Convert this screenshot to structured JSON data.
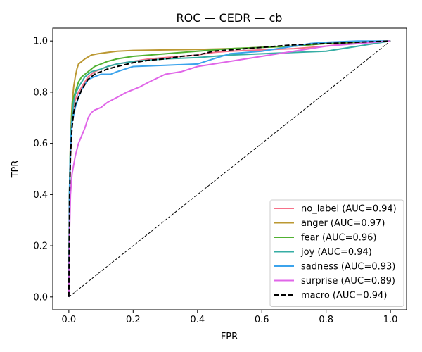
{
  "chart_data": {
    "type": "line",
    "title": "ROC — CEDR — cb",
    "xlabel": "FPR",
    "ylabel": "TPR",
    "xlim": [
      -0.05,
      1.05
    ],
    "ylim": [
      -0.05,
      1.05
    ],
    "xticks": [
      0.0,
      0.2,
      0.4,
      0.6,
      0.8,
      1.0
    ],
    "xtick_labels": [
      "0.0",
      "0.2",
      "0.4",
      "0.6",
      "0.8",
      "1.0"
    ],
    "yticks": [
      0.0,
      0.2,
      0.4,
      0.6,
      0.8,
      1.0
    ],
    "ytick_labels": [
      "0.0",
      "0.2",
      "0.4",
      "0.6",
      "0.8",
      "1.0"
    ],
    "grid": false,
    "legend_position": "bottom-right",
    "diagonal": {
      "x": [
        0,
        1
      ],
      "y": [
        0,
        1
      ],
      "color": "#000000",
      "style": "dashed"
    },
    "series": [
      {
        "name": "no_label (AUC=0.94)",
        "color": "#f77189",
        "x": [
          0,
          0.002,
          0.005,
          0.01,
          0.015,
          0.02,
          0.03,
          0.04,
          0.05,
          0.06,
          0.08,
          0.1,
          0.12,
          0.15,
          0.2,
          0.25,
          0.3,
          0.35,
          0.4,
          0.45,
          0.5,
          0.6,
          0.7,
          0.8,
          0.9,
          1.0
        ],
        "y": [
          0,
          0.35,
          0.55,
          0.68,
          0.74,
          0.77,
          0.8,
          0.82,
          0.84,
          0.86,
          0.88,
          0.89,
          0.9,
          0.91,
          0.92,
          0.93,
          0.935,
          0.94,
          0.945,
          0.955,
          0.96,
          0.965,
          0.97,
          0.98,
          0.995,
          1.0
        ]
      },
      {
        "name": "anger (AUC=0.97)",
        "color": "#bb9832",
        "x": [
          0,
          0.002,
          0.005,
          0.01,
          0.015,
          0.02,
          0.025,
          0.03,
          0.04,
          0.05,
          0.07,
          0.09,
          0.12,
          0.15,
          0.2,
          0.3,
          0.4,
          0.5,
          0.6,
          0.7,
          0.8,
          0.9,
          1.0
        ],
        "y": [
          0,
          0.4,
          0.62,
          0.75,
          0.82,
          0.86,
          0.89,
          0.91,
          0.92,
          0.93,
          0.945,
          0.95,
          0.955,
          0.96,
          0.963,
          0.965,
          0.967,
          0.97,
          0.975,
          0.98,
          0.99,
          0.995,
          1.0
        ]
      },
      {
        "name": "fear (AUC=0.96)",
        "color": "#50b131",
        "x": [
          0,
          0.002,
          0.005,
          0.01,
          0.015,
          0.02,
          0.03,
          0.04,
          0.05,
          0.06,
          0.08,
          0.1,
          0.12,
          0.15,
          0.2,
          0.25,
          0.3,
          0.4,
          0.5,
          0.6,
          0.7,
          0.8,
          0.9,
          1.0
        ],
        "y": [
          0,
          0.4,
          0.6,
          0.72,
          0.78,
          0.8,
          0.84,
          0.86,
          0.87,
          0.88,
          0.9,
          0.91,
          0.92,
          0.93,
          0.94,
          0.945,
          0.95,
          0.96,
          0.97,
          0.975,
          0.98,
          0.99,
          0.995,
          1.0
        ]
      },
      {
        "name": "joy (AUC=0.94)",
        "color": "#36ada4",
        "x": [
          0,
          0.002,
          0.005,
          0.01,
          0.015,
          0.02,
          0.03,
          0.04,
          0.05,
          0.07,
          0.1,
          0.12,
          0.15,
          0.2,
          0.3,
          0.4,
          0.45,
          0.5,
          0.6,
          0.7,
          0.8,
          0.9,
          1.0
        ],
        "y": [
          0,
          0.42,
          0.6,
          0.7,
          0.76,
          0.79,
          0.82,
          0.84,
          0.86,
          0.88,
          0.89,
          0.9,
          0.91,
          0.92,
          0.93,
          0.935,
          0.94,
          0.945,
          0.95,
          0.955,
          0.96,
          0.98,
          1.0
        ]
      },
      {
        "name": "sadness (AUC=0.93)",
        "color": "#3ba3ec",
        "x": [
          0,
          0.002,
          0.005,
          0.01,
          0.02,
          0.03,
          0.04,
          0.05,
          0.06,
          0.08,
          0.1,
          0.13,
          0.15,
          0.2,
          0.3,
          0.4,
          0.45,
          0.5,
          0.6,
          0.7,
          0.75,
          0.8,
          0.9,
          1.0
        ],
        "y": [
          0,
          0.4,
          0.58,
          0.68,
          0.74,
          0.78,
          0.81,
          0.83,
          0.85,
          0.86,
          0.87,
          0.87,
          0.88,
          0.9,
          0.905,
          0.91,
          0.93,
          0.95,
          0.96,
          0.98,
          0.99,
          0.995,
          1.0,
          1.0
        ]
      },
      {
        "name": "surprise (AUC=0.89)",
        "color": "#e066e8",
        "x": [
          0,
          0.002,
          0.005,
          0.01,
          0.02,
          0.03,
          0.04,
          0.05,
          0.06,
          0.07,
          0.08,
          0.1,
          0.12,
          0.15,
          0.18,
          0.2,
          0.22,
          0.25,
          0.3,
          0.35,
          0.4,
          0.45,
          0.5,
          0.6,
          0.7,
          0.8,
          0.9,
          1.0
        ],
        "y": [
          0,
          0.25,
          0.4,
          0.48,
          0.55,
          0.6,
          0.63,
          0.66,
          0.7,
          0.72,
          0.73,
          0.74,
          0.76,
          0.78,
          0.8,
          0.81,
          0.82,
          0.84,
          0.87,
          0.88,
          0.9,
          0.91,
          0.92,
          0.94,
          0.96,
          0.98,
          0.99,
          1.0
        ]
      },
      {
        "name": "macro (AUC=0.94)",
        "color": "#000000",
        "dashed": true,
        "x": [
          0,
          0.002,
          0.005,
          0.01,
          0.015,
          0.02,
          0.03,
          0.04,
          0.05,
          0.06,
          0.08,
          0.1,
          0.12,
          0.15,
          0.2,
          0.25,
          0.3,
          0.35,
          0.4,
          0.45,
          0.5,
          0.6,
          0.7,
          0.8,
          0.9,
          1.0
        ],
        "y": [
          0,
          0.38,
          0.55,
          0.66,
          0.72,
          0.75,
          0.78,
          0.81,
          0.83,
          0.85,
          0.87,
          0.88,
          0.89,
          0.9,
          0.915,
          0.925,
          0.93,
          0.94,
          0.945,
          0.96,
          0.965,
          0.975,
          0.985,
          0.99,
          0.995,
          1.0
        ]
      }
    ]
  }
}
